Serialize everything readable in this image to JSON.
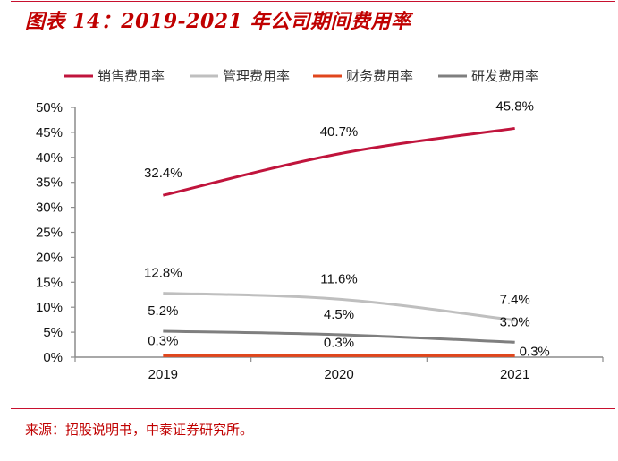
{
  "header": {
    "title": "图表 14：2019-2021 年公司期间费用率"
  },
  "footer": {
    "source": "来源：招股说明书，中泰证券研究所。"
  },
  "colors": {
    "accent": "#c00000"
  },
  "chart_data": {
    "type": "line",
    "title": "2019-2021 年公司期间费用率",
    "xlabel": "",
    "ylabel": "",
    "categories": [
      "2019",
      "2020",
      "2021"
    ],
    "ylim": [
      0,
      50
    ],
    "yticks": [
      "0%",
      "5%",
      "10%",
      "15%",
      "20%",
      "25%",
      "30%",
      "35%",
      "40%",
      "45%",
      "50%"
    ],
    "grid": false,
    "legend_position": "top",
    "series": [
      {
        "name": "销售费用率",
        "color": "#c0143c",
        "values": [
          32.4,
          40.7,
          45.8
        ],
        "labels": [
          "32.4%",
          "40.7%",
          "45.8%"
        ]
      },
      {
        "name": "管理费用率",
        "color": "#bfbfbf",
        "values": [
          12.8,
          11.6,
          7.4
        ],
        "labels": [
          "12.8%",
          "11.6%",
          "7.4%"
        ]
      },
      {
        "name": "财务费用率",
        "color": "#e0461c",
        "values": [
          0.3,
          0.3,
          0.3
        ],
        "labels": [
          "0.3%",
          "0.3%",
          "0.3%"
        ]
      },
      {
        "name": "研发费用率",
        "color": "#7f7f7f",
        "values": [
          5.2,
          4.5,
          3.0
        ],
        "labels": [
          "5.2%",
          "4.5%",
          "3.0%"
        ]
      }
    ]
  }
}
